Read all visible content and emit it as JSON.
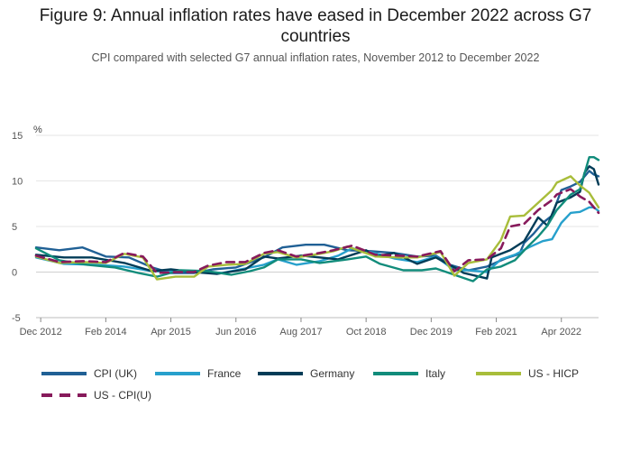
{
  "chart_data": {
    "type": "line",
    "title_lines": [
      "Figure 9: Annual inflation rates have eased in December 2022 across G7",
      "countries"
    ],
    "subtitle": "CPI compared with selected G7 annual inflation rates, November 2012 to December 2022",
    "ylabel": "%",
    "xlabel": "",
    "ylim": [
      -5,
      15
    ],
    "yticks": [
      -5,
      0,
      5,
      10,
      15
    ],
    "grid": true,
    "legend_position": "bottom",
    "x_start": "2012-11",
    "x_end": "2022-12",
    "x_tick_labels": [
      {
        "date": "2012-12",
        "label": "Dec 2012"
      },
      {
        "date": "2014-02",
        "label": "Feb 2014"
      },
      {
        "date": "2015-04",
        "label": "Apr 2015"
      },
      {
        "date": "2016-06",
        "label": "Jun 2016"
      },
      {
        "date": "2017-08",
        "label": "Aug 2017"
      },
      {
        "date": "2018-10",
        "label": "Oct 2018"
      },
      {
        "date": "2019-12",
        "label": "Dec 2019"
      },
      {
        "date": "2021-02",
        "label": "Feb 2021"
      },
      {
        "date": "2022-04",
        "label": "Apr 2022"
      }
    ],
    "series": [
      {
        "name": "CPI (UK)",
        "color": "#206095",
        "dashed": false,
        "points": [
          [
            "2012-11",
            2.7
          ],
          [
            "2013-04",
            2.4
          ],
          [
            "2013-09",
            2.7
          ],
          [
            "2014-02",
            1.7
          ],
          [
            "2014-07",
            1.6
          ],
          [
            "2014-12",
            0.5
          ],
          [
            "2015-04",
            -0.1
          ],
          [
            "2015-09",
            -0.1
          ],
          [
            "2016-01",
            0.3
          ],
          [
            "2016-06",
            0.5
          ],
          [
            "2016-12",
            1.6
          ],
          [
            "2017-04",
            2.7
          ],
          [
            "2017-09",
            3.0
          ],
          [
            "2018-01",
            3.0
          ],
          [
            "2018-06",
            2.4
          ],
          [
            "2018-11",
            2.3
          ],
          [
            "2019-04",
            2.1
          ],
          [
            "2019-09",
            1.7
          ],
          [
            "2020-01",
            1.8
          ],
          [
            "2020-04",
            0.8
          ],
          [
            "2020-08",
            0.2
          ],
          [
            "2020-12",
            0.6
          ],
          [
            "2021-04",
            1.5
          ],
          [
            "2021-07",
            2.0
          ],
          [
            "2021-08",
            3.2
          ],
          [
            "2021-10",
            4.2
          ],
          [
            "2021-12",
            5.4
          ],
          [
            "2022-02",
            6.2
          ],
          [
            "2022-04",
            9.0
          ],
          [
            "2022-06",
            9.4
          ],
          [
            "2022-08",
            9.9
          ],
          [
            "2022-10",
            11.1
          ],
          [
            "2022-11",
            10.7
          ],
          [
            "2022-12",
            10.5
          ]
        ]
      },
      {
        "name": "France",
        "color": "#27a0cc",
        "dashed": false,
        "points": [
          [
            "2012-11",
            1.6
          ],
          [
            "2013-05",
            0.9
          ],
          [
            "2013-12",
            0.8
          ],
          [
            "2014-06",
            0.6
          ],
          [
            "2014-12",
            0.1
          ],
          [
            "2015-04",
            0.1
          ],
          [
            "2015-09",
            0.1
          ],
          [
            "2016-03",
            -0.1
          ],
          [
            "2016-08",
            0.4
          ],
          [
            "2016-12",
            0.8
          ],
          [
            "2017-03",
            1.4
          ],
          [
            "2017-07",
            0.8
          ],
          [
            "2017-12",
            1.2
          ],
          [
            "2018-04",
            1.8
          ],
          [
            "2018-07",
            2.6
          ],
          [
            "2018-11",
            2.2
          ],
          [
            "2019-04",
            1.5
          ],
          [
            "2019-09",
            1.1
          ],
          [
            "2020-01",
            1.7
          ],
          [
            "2020-05",
            0.2
          ],
          [
            "2020-08",
            0.2
          ],
          [
            "2020-12",
            0.0
          ],
          [
            "2021-03",
            1.4
          ],
          [
            "2021-06",
            1.9
          ],
          [
            "2021-09",
            2.7
          ],
          [
            "2021-12",
            3.4
          ],
          [
            "2022-02",
            3.6
          ],
          [
            "2022-04",
            5.4
          ],
          [
            "2022-06",
            6.5
          ],
          [
            "2022-08",
            6.6
          ],
          [
            "2022-10",
            7.1
          ],
          [
            "2022-11",
            7.1
          ],
          [
            "2022-12",
            6.7
          ]
        ]
      },
      {
        "name": "Germany",
        "color": "#003c57",
        "dashed": false,
        "points": [
          [
            "2012-11",
            1.9
          ],
          [
            "2013-05",
            1.6
          ],
          [
            "2013-11",
            1.6
          ],
          [
            "2014-06",
            1.0
          ],
          [
            "2014-12",
            0.1
          ],
          [
            "2015-04",
            0.3
          ],
          [
            "2015-09",
            0.0
          ],
          [
            "2016-02",
            -0.2
          ],
          [
            "2016-08",
            0.3
          ],
          [
            "2016-12",
            1.7
          ],
          [
            "2017-03",
            1.5
          ],
          [
            "2017-08",
            1.8
          ],
          [
            "2017-12",
            1.6
          ],
          [
            "2018-04",
            1.4
          ],
          [
            "2018-10",
            2.4
          ],
          [
            "2018-12",
            1.7
          ],
          [
            "2019-04",
            2.1
          ],
          [
            "2019-09",
            0.9
          ],
          [
            "2020-01",
            1.6
          ],
          [
            "2020-05",
            0.5
          ],
          [
            "2020-07",
            -0.1
          ],
          [
            "2020-12",
            -0.7
          ],
          [
            "2021-01",
            1.6
          ],
          [
            "2021-05",
            2.4
          ],
          [
            "2021-08",
            3.4
          ],
          [
            "2021-11",
            6.0
          ],
          [
            "2022-01",
            5.1
          ],
          [
            "2022-03",
            7.6
          ],
          [
            "2022-06",
            8.2
          ],
          [
            "2022-08",
            8.8
          ],
          [
            "2022-09",
            10.9
          ],
          [
            "2022-10",
            11.6
          ],
          [
            "2022-11",
            11.3
          ],
          [
            "2022-12",
            9.6
          ]
        ]
      },
      {
        "name": "Italy",
        "color": "#118c7b",
        "dashed": false,
        "points": [
          [
            "2012-11",
            2.6
          ],
          [
            "2013-04",
            1.3
          ],
          [
            "2013-10",
            0.8
          ],
          [
            "2014-04",
            0.5
          ],
          [
            "2014-09",
            -0.1
          ],
          [
            "2015-01",
            -0.5
          ],
          [
            "2015-06",
            0.2
          ],
          [
            "2015-12",
            0.1
          ],
          [
            "2016-05",
            -0.3
          ],
          [
            "2016-09",
            0.1
          ],
          [
            "2016-12",
            0.5
          ],
          [
            "2017-03",
            1.4
          ],
          [
            "2017-08",
            1.4
          ],
          [
            "2017-12",
            1.0
          ],
          [
            "2018-06",
            1.4
          ],
          [
            "2018-10",
            1.7
          ],
          [
            "2019-01",
            0.9
          ],
          [
            "2019-06",
            0.2
          ],
          [
            "2019-10",
            0.2
          ],
          [
            "2020-01",
            0.4
          ],
          [
            "2020-05",
            -0.3
          ],
          [
            "2020-09",
            -1.0
          ],
          [
            "2020-12",
            0.3
          ],
          [
            "2021-03",
            0.6
          ],
          [
            "2021-06",
            1.3
          ],
          [
            "2021-09",
            2.9
          ],
          [
            "2021-11",
            3.9
          ],
          [
            "2022-01",
            5.1
          ],
          [
            "2022-03",
            6.8
          ],
          [
            "2022-06",
            8.5
          ],
          [
            "2022-08",
            9.1
          ],
          [
            "2022-10",
            12.6
          ],
          [
            "2022-11",
            12.6
          ],
          [
            "2022-12",
            12.3
          ]
        ]
      },
      {
        "name": "US - HICP",
        "color": "#a8bd3a",
        "dashed": false,
        "points": [
          [
            "2012-11",
            1.7
          ],
          [
            "2013-04",
            1.0
          ],
          [
            "2013-09",
            1.1
          ],
          [
            "2014-02",
            1.0
          ],
          [
            "2014-06",
            2.0
          ],
          [
            "2014-10",
            1.6
          ],
          [
            "2015-01",
            -0.8
          ],
          [
            "2015-05",
            -0.5
          ],
          [
            "2015-09",
            -0.5
          ],
          [
            "2015-12",
            0.6
          ],
          [
            "2016-04",
            0.8
          ],
          [
            "2016-08",
            0.9
          ],
          [
            "2016-12",
            2.0
          ],
          [
            "2017-03",
            2.2
          ],
          [
            "2017-07",
            1.6
          ],
          [
            "2017-12",
            2.0
          ],
          [
            "2018-03",
            2.3
          ],
          [
            "2018-06",
            2.8
          ],
          [
            "2018-12",
            1.7
          ],
          [
            "2019-05",
            1.6
          ],
          [
            "2019-09",
            1.6
          ],
          [
            "2020-02",
            2.2
          ],
          [
            "2020-05",
            -0.4
          ],
          [
            "2020-08",
            1.0
          ],
          [
            "2020-12",
            1.4
          ],
          [
            "2021-03",
            3.5
          ],
          [
            "2021-05",
            6.1
          ],
          [
            "2021-08",
            6.2
          ],
          [
            "2021-11",
            7.6
          ],
          [
            "2022-02",
            9.0
          ],
          [
            "2022-03",
            9.8
          ],
          [
            "2022-06",
            10.5
          ],
          [
            "2022-08",
            9.5
          ],
          [
            "2022-10",
            8.7
          ],
          [
            "2022-12",
            7.1
          ]
        ]
      },
      {
        "name": "US - CPI(U)",
        "color": "#871a5b",
        "dashed": true,
        "points": [
          [
            "2012-11",
            1.8
          ],
          [
            "2013-04",
            1.1
          ],
          [
            "2013-09",
            1.2
          ],
          [
            "2014-02",
            1.1
          ],
          [
            "2014-06",
            2.1
          ],
          [
            "2014-10",
            1.7
          ],
          [
            "2015-01",
            -0.1
          ],
          [
            "2015-05",
            0.0
          ],
          [
            "2015-09",
            0.0
          ],
          [
            "2015-12",
            0.7
          ],
          [
            "2016-04",
            1.1
          ],
          [
            "2016-08",
            1.1
          ],
          [
            "2016-12",
            2.1
          ],
          [
            "2017-03",
            2.4
          ],
          [
            "2017-07",
            1.7
          ],
          [
            "2017-12",
            2.1
          ],
          [
            "2018-03",
            2.4
          ],
          [
            "2018-07",
            2.9
          ],
          [
            "2018-12",
            1.9
          ],
          [
            "2019-05",
            1.8
          ],
          [
            "2019-09",
            1.7
          ],
          [
            "2020-02",
            2.3
          ],
          [
            "2020-05",
            0.1
          ],
          [
            "2020-08",
            1.3
          ],
          [
            "2020-12",
            1.4
          ],
          [
            "2021-03",
            2.6
          ],
          [
            "2021-05",
            5.0
          ],
          [
            "2021-08",
            5.3
          ],
          [
            "2021-11",
            6.8
          ],
          [
            "2022-02",
            7.9
          ],
          [
            "2022-03",
            8.5
          ],
          [
            "2022-06",
            9.1
          ],
          [
            "2022-08",
            8.3
          ],
          [
            "2022-10",
            7.7
          ],
          [
            "2022-12",
            6.5
          ]
        ]
      }
    ]
  }
}
